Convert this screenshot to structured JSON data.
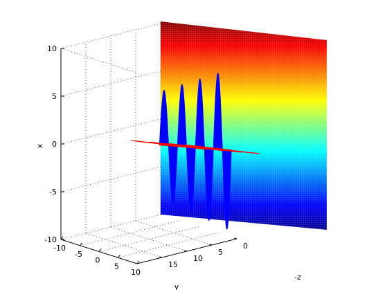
{
  "colors": {
    "background": "#ffffff",
    "grid": "#333333",
    "axes": "#000000",
    "wave_blue": "#0000ff",
    "wave_red": "#ff0000",
    "colormap": "jet"
  },
  "chart_data": {
    "type": "3d-surface-line",
    "title": "",
    "xlabel": "y",
    "ylabel": "-z",
    "zlabel": "x",
    "grid": true,
    "axes": {
      "x_axis": {
        "name": "y",
        "range": [
          -10,
          10
        ],
        "ticks": [
          "-10",
          "-5",
          "0",
          "5",
          "10"
        ]
      },
      "y_axis": {
        "name": "-z",
        "range": [
          0,
          20
        ],
        "ticks": [
          "0",
          "5",
          "10",
          "15"
        ]
      },
      "z_axis": {
        "name": "x",
        "range": [
          -10,
          10
        ],
        "ticks": [
          "-10",
          "-5",
          "0",
          "5",
          "10"
        ]
      }
    },
    "series": [
      {
        "description": "electric field wave (vertical plane)",
        "color": "#0000ff",
        "cycles": 4,
        "amplitude_growth": [
          5.5,
          8.5
        ]
      },
      {
        "description": "magnetic field wave (horizontal plane)",
        "color": "#ff0000",
        "cycles": 4
      },
      {
        "description": "colored background plane",
        "colormap": "jet",
        "range": [
          -10,
          10
        ]
      }
    ]
  }
}
